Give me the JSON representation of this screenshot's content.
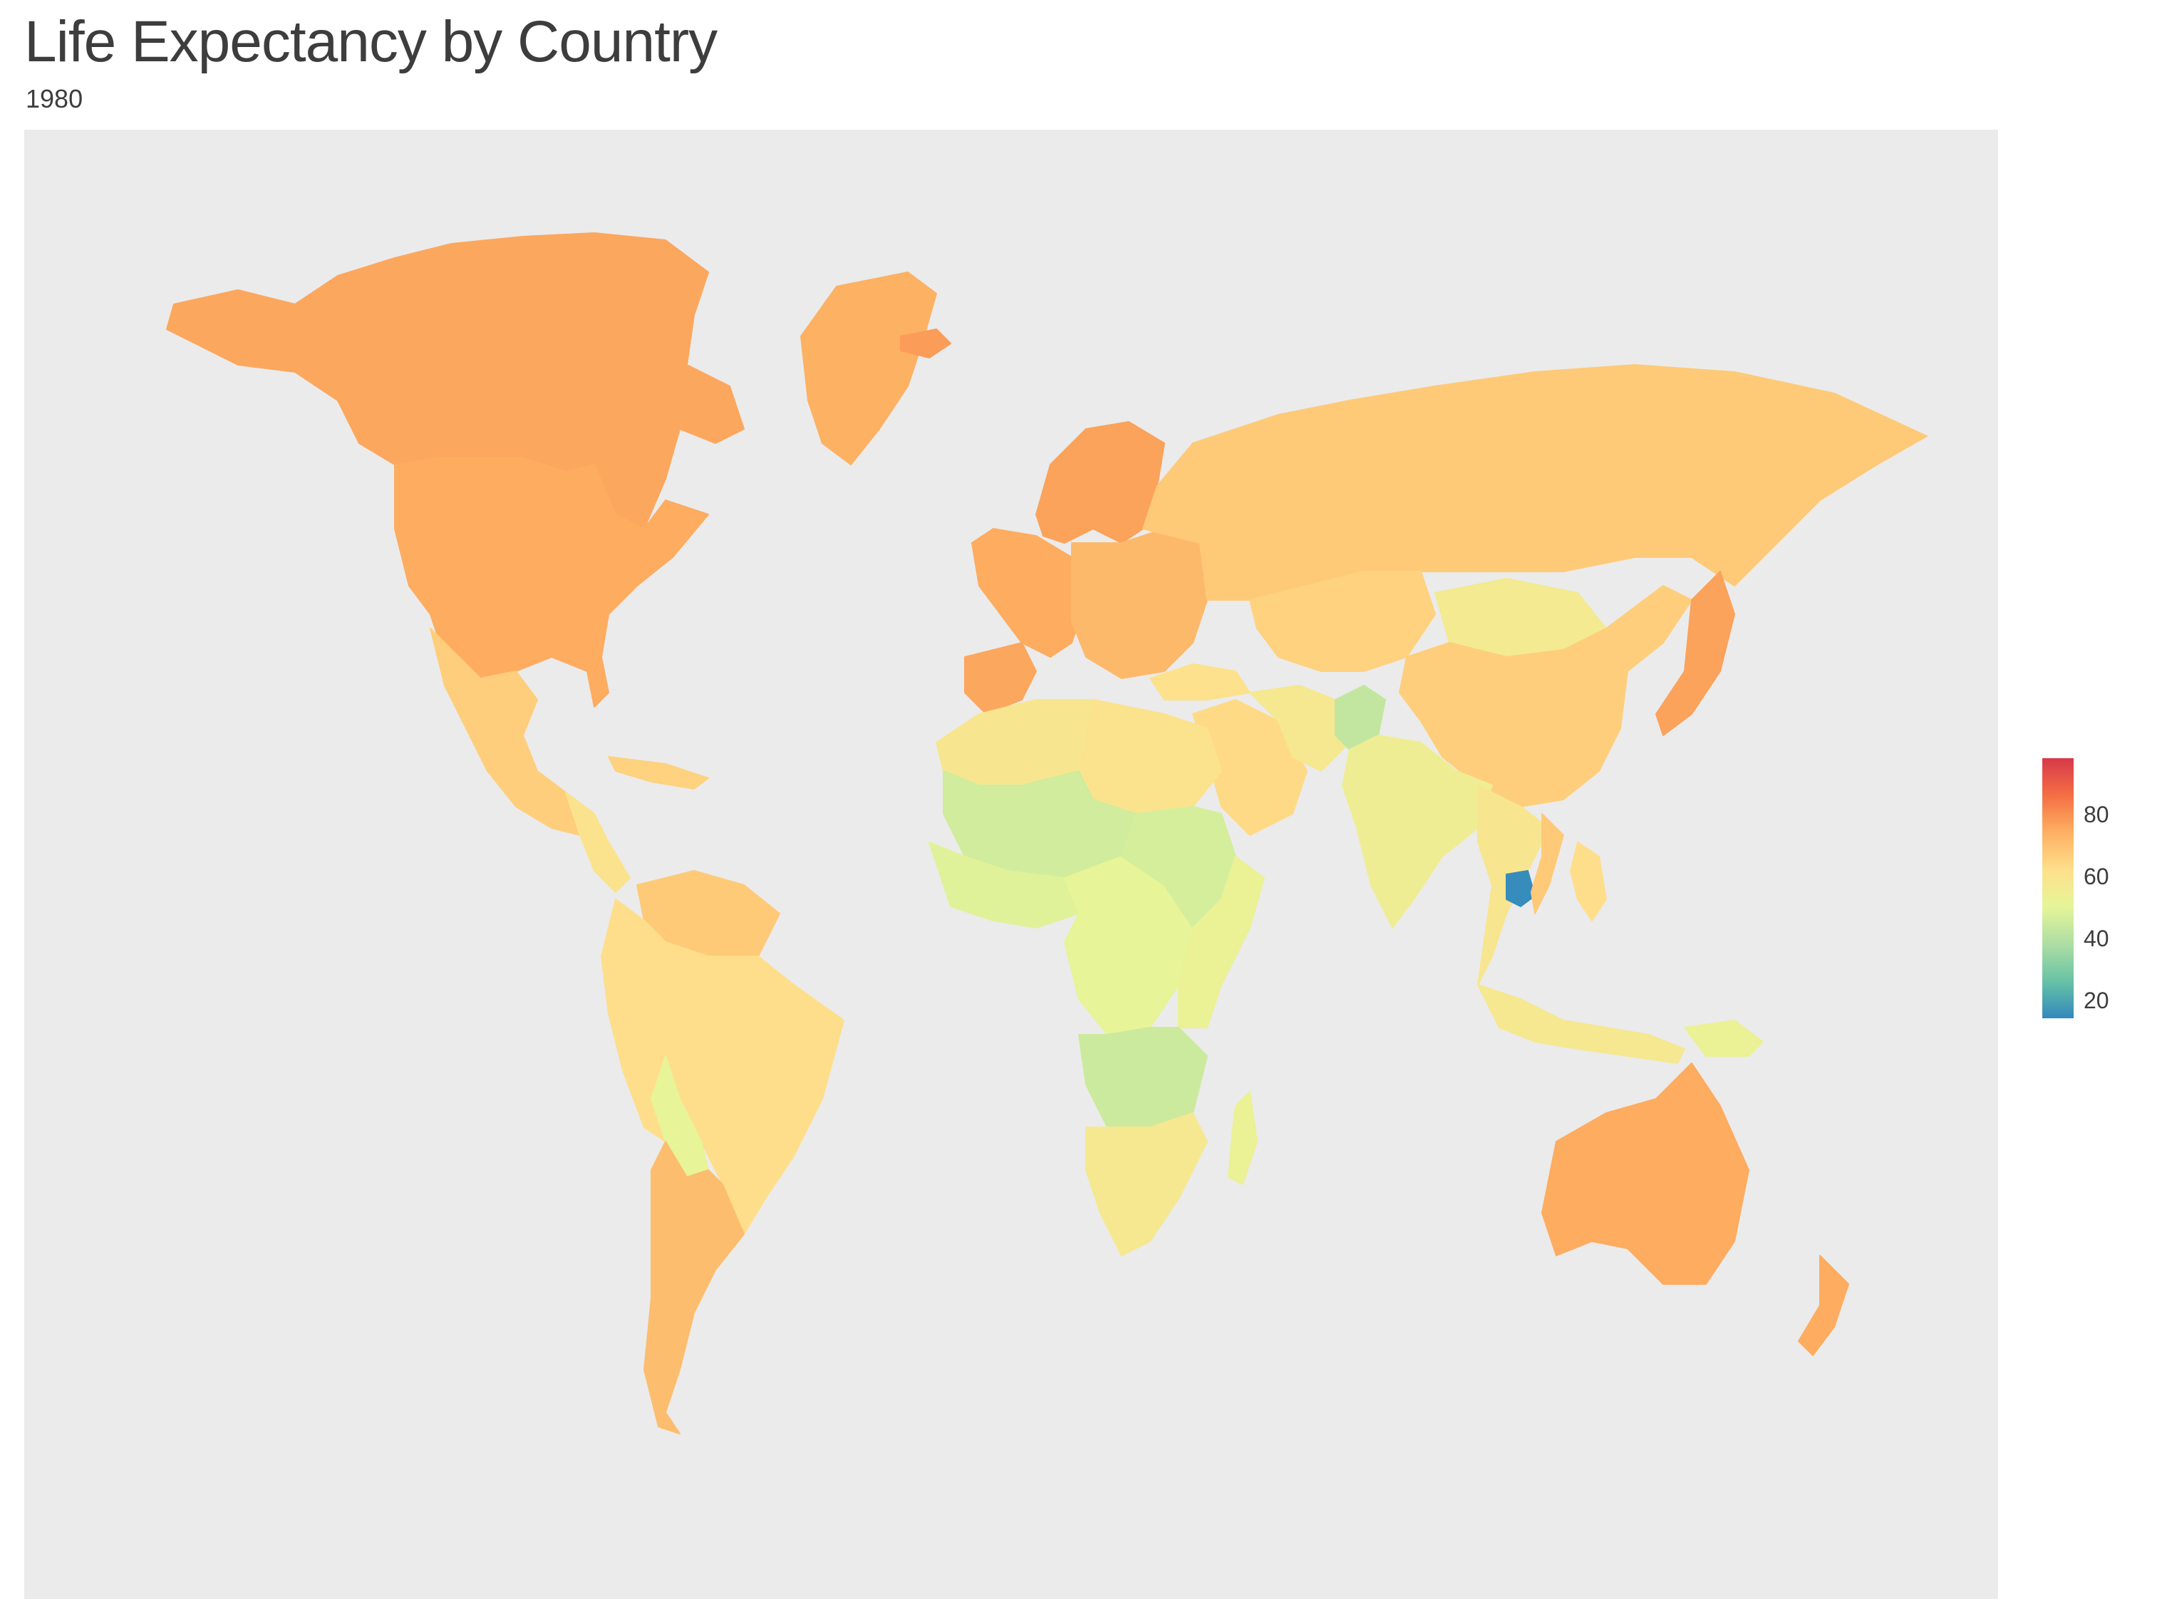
{
  "title": "Life Expectancy by Country",
  "subtitle": "1980",
  "legend": {
    "ticks": [
      "80",
      "60",
      "40",
      "20"
    ],
    "colors": [
      "#d7394b",
      "#f46d43",
      "#fdae61",
      "#fee08b",
      "#e6f598",
      "#abdda4",
      "#66c2a5",
      "#3288bd"
    ]
  },
  "chart_data": {
    "type": "choropleth",
    "year": "1980",
    "scale_range": [
      13,
      98
    ],
    "regions": [
      {
        "name": "Canada",
        "value": 75
      },
      {
        "name": "United States",
        "value": 74
      },
      {
        "name": "Greenland",
        "value": 73
      },
      {
        "name": "Mexico",
        "value": 66
      },
      {
        "name": "Central America",
        "value": 60
      },
      {
        "name": "Caribbean",
        "value": 65
      },
      {
        "name": "Venezuela/Guianas",
        "value": 67
      },
      {
        "name": "Colombia/Ecuador/Peru",
        "value": 62
      },
      {
        "name": "Brazil",
        "value": 62
      },
      {
        "name": "Bolivia",
        "value": 50
      },
      {
        "name": "Argentina/Chile/Uruguay",
        "value": 70
      },
      {
        "name": "Iceland",
        "value": 77
      },
      {
        "name": "Scandinavia",
        "value": 76
      },
      {
        "name": "Western Europe",
        "value": 74
      },
      {
        "name": "Iberia",
        "value": 75
      },
      {
        "name": "Eastern Europe",
        "value": 71
      },
      {
        "name": "Russia",
        "value": 67
      },
      {
        "name": "Kazakhstan/Central Asia",
        "value": 65
      },
      {
        "name": "Mongolia",
        "value": 56
      },
      {
        "name": "China",
        "value": 66
      },
      {
        "name": "Japan",
        "value": 76
      },
      {
        "name": "Turkey",
        "value": 61
      },
      {
        "name": "Middle East",
        "value": 63
      },
      {
        "name": "Iran",
        "value": 57
      },
      {
        "name": "Afghanistan",
        "value": 42
      },
      {
        "name": "India",
        "value": 54
      },
      {
        "name": "Southeast Asia",
        "value": 58
      },
      {
        "name": "Cambodia",
        "value": 14
      },
      {
        "name": "Vietnam",
        "value": 67
      },
      {
        "name": "Indonesia",
        "value": 57
      },
      {
        "name": "Philippines",
        "value": 62
      },
      {
        "name": "Papua New Guinea",
        "value": 52
      },
      {
        "name": "Australia",
        "value": 74
      },
      {
        "name": "New Zealand",
        "value": 74
      },
      {
        "name": "North Africa",
        "value": 58
      },
      {
        "name": "Egypt/Libya",
        "value": 60
      },
      {
        "name": "Sahel",
        "value": 45
      },
      {
        "name": "West Africa",
        "value": 48
      },
      {
        "name": "Central Africa",
        "value": 50
      },
      {
        "name": "Ethiopia/Sudan",
        "value": 46
      },
      {
        "name": "East Africa",
        "value": 52
      },
      {
        "name": "Angola/Zambia",
        "value": 44
      },
      {
        "name": "Southern Africa",
        "value": 57
      },
      {
        "name": "Madagascar",
        "value": 52
      }
    ]
  }
}
